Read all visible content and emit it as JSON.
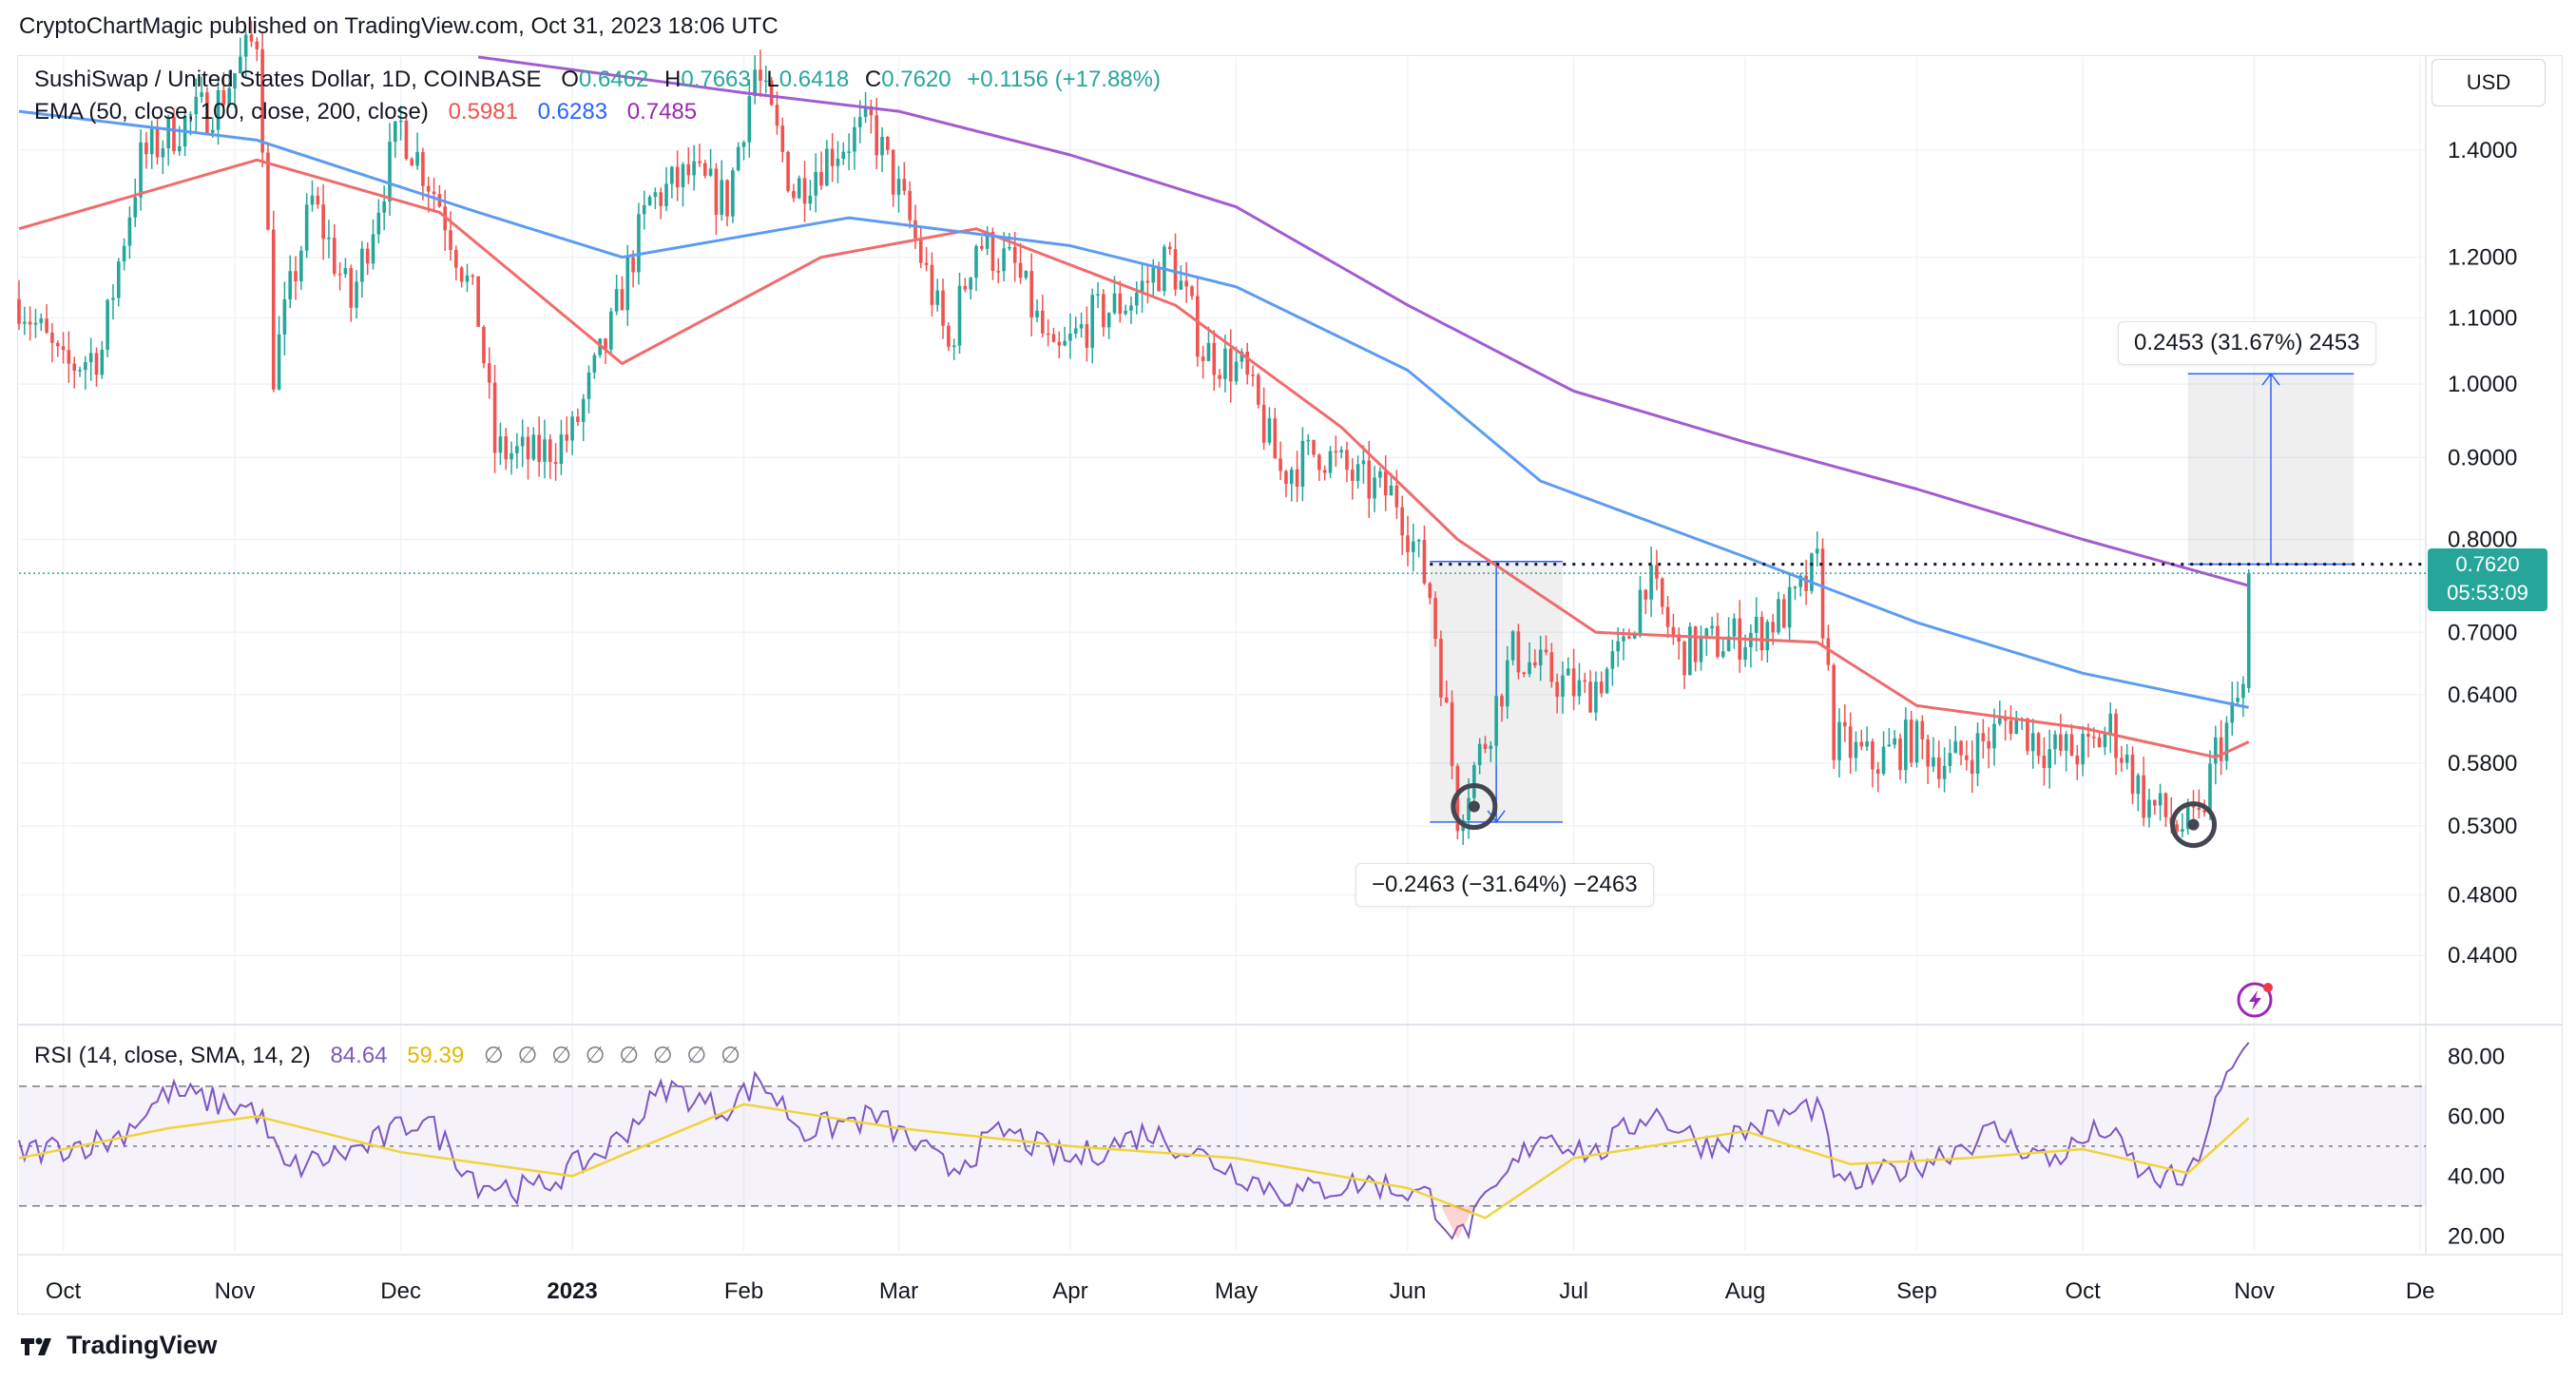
{
  "header": {
    "publisher": "CryptoChartMagic published on TradingView.com, Oct 31, 2023 18:06 UTC"
  },
  "legend": {
    "symbol": "SushiSwap / United States Dollar, 1D, COINBASE",
    "ohlc": [
      {
        "label": "O",
        "value": "0.6462"
      },
      {
        "label": "H",
        "value": "0.7663"
      },
      {
        "label": "L",
        "value": "0.6418"
      },
      {
        "label": "C",
        "value": "0.7620"
      }
    ],
    "change": "+0.1156 (+17.88%)",
    "ema_label": "EMA (50, close, 100, close, 200, close)",
    "ema_values": [
      "0.5981",
      "0.6283",
      "0.7485"
    ],
    "rsi_label": "RSI (14, close, SMA, 14, 2)",
    "rsi_values": [
      "84.64",
      "59.39"
    ],
    "rsi_placeholders": "∅ ∅ ∅ ∅ ∅ ∅ ∅ ∅"
  },
  "price_scale": {
    "currency": "USD",
    "ticks": [
      "1.4000",
      "1.2000",
      "1.1000",
      "1.0000",
      "0.9000",
      "0.8000",
      "0.7000",
      "0.6400",
      "0.5800",
      "0.5300",
      "0.4800",
      "0.4400"
    ],
    "last_price": "0.7620",
    "countdown": "05:53:09"
  },
  "rsi_scale": {
    "ticks": [
      "80.00",
      "60.00",
      "40.00",
      "20.00"
    ]
  },
  "time_axis": {
    "labels": [
      "Oct",
      "Nov",
      "Dec",
      "2023",
      "Feb",
      "Mar",
      "Apr",
      "May",
      "Jun",
      "Jul",
      "Aug",
      "Sep",
      "Oct",
      "Nov",
      "De"
    ]
  },
  "measurements": {
    "up": "0.2453 (31.67%) 2453",
    "down": "−0.2463 (−31.64%) −2463"
  },
  "footer": {
    "brand": "TradingView"
  },
  "colors": {
    "up": "#26a69a",
    "down": "#ef5350",
    "ema50": "#f06b6b",
    "ema100": "#5b9cf2",
    "ema200": "#a35bd0",
    "rsi": "#7e57c2",
    "rsi_sma": "#f0d43a"
  },
  "chart_data": {
    "type": "candlestick",
    "title": "SushiSwap / United States Dollar, 1D, COINBASE",
    "x_range": [
      "2022-09-23",
      "2023-12-02"
    ],
    "y_scale": "log",
    "ylim": [
      0.4,
      1.6
    ],
    "grid": true,
    "price_waypoints": [
      {
        "date": "2022-09-23",
        "close": 1.13
      },
      {
        "date": "2022-10-01",
        "close": 1.02
      },
      {
        "date": "2022-10-08",
        "close": 1.05
      },
      {
        "date": "2022-10-15",
        "close": 1.38
      },
      {
        "date": "2022-10-22",
        "close": 1.45
      },
      {
        "date": "2022-10-29",
        "close": 1.5
      },
      {
        "date": "2022-11-05",
        "close": 1.65
      },
      {
        "date": "2022-11-08",
        "close": 1.02
      },
      {
        "date": "2022-11-15",
        "close": 1.3
      },
      {
        "date": "2022-11-22",
        "close": 1.12
      },
      {
        "date": "2022-12-01",
        "close": 1.45
      },
      {
        "date": "2022-12-08",
        "close": 1.3
      },
      {
        "date": "2022-12-15",
        "close": 1.1
      },
      {
        "date": "2022-12-18",
        "close": 0.91
      },
      {
        "date": "2022-12-25",
        "close": 0.9
      },
      {
        "date": "2023-01-01",
        "close": 0.93
      },
      {
        "date": "2023-01-08",
        "close": 1.08
      },
      {
        "date": "2023-01-15",
        "close": 1.3
      },
      {
        "date": "2023-01-22",
        "close": 1.35
      },
      {
        "date": "2023-01-29",
        "close": 1.3
      },
      {
        "date": "2023-02-03",
        "close": 1.57
      },
      {
        "date": "2023-02-10",
        "close": 1.32
      },
      {
        "date": "2023-02-17",
        "close": 1.4
      },
      {
        "date": "2023-02-24",
        "close": 1.45
      },
      {
        "date": "2023-03-03",
        "close": 1.26
      },
      {
        "date": "2023-03-10",
        "close": 1.05
      },
      {
        "date": "2023-03-15",
        "close": 1.23
      },
      {
        "date": "2023-03-22",
        "close": 1.18
      },
      {
        "date": "2023-03-29",
        "close": 1.03
      },
      {
        "date": "2023-04-05",
        "close": 1.1
      },
      {
        "date": "2023-04-12",
        "close": 1.13
      },
      {
        "date": "2023-04-19",
        "close": 1.2
      },
      {
        "date": "2023-04-25",
        "close": 1.05
      },
      {
        "date": "2023-05-02",
        "close": 1.02
      },
      {
        "date": "2023-05-09",
        "close": 0.88
      },
      {
        "date": "2023-05-16",
        "close": 0.91
      },
      {
        "date": "2023-05-23",
        "close": 0.87
      },
      {
        "date": "2023-05-30",
        "close": 0.85
      },
      {
        "date": "2023-06-05",
        "close": 0.74
      },
      {
        "date": "2023-06-10",
        "close": 0.54
      },
      {
        "date": "2023-06-15",
        "close": 0.6
      },
      {
        "date": "2023-06-20",
        "close": 0.68
      },
      {
        "date": "2023-06-26",
        "close": 0.66
      },
      {
        "date": "2023-07-03",
        "close": 0.64
      },
      {
        "date": "2023-07-10",
        "close": 0.68
      },
      {
        "date": "2023-07-14",
        "close": 0.76
      },
      {
        "date": "2023-07-20",
        "close": 0.68
      },
      {
        "date": "2023-07-27",
        "close": 0.69
      },
      {
        "date": "2023-08-03",
        "close": 0.7
      },
      {
        "date": "2023-08-10",
        "close": 0.73
      },
      {
        "date": "2023-08-14",
        "close": 0.77
      },
      {
        "date": "2023-08-17",
        "close": 0.6
      },
      {
        "date": "2023-08-24",
        "close": 0.58
      },
      {
        "date": "2023-08-31",
        "close": 0.6
      },
      {
        "date": "2023-09-07",
        "close": 0.58
      },
      {
        "date": "2023-09-14",
        "close": 0.6
      },
      {
        "date": "2023-09-18",
        "close": 0.62
      },
      {
        "date": "2023-09-25",
        "close": 0.59
      },
      {
        "date": "2023-10-02",
        "close": 0.59
      },
      {
        "date": "2023-10-06",
        "close": 0.61
      },
      {
        "date": "2023-10-12",
        "close": 0.55
      },
      {
        "date": "2023-10-18",
        "close": 0.53
      },
      {
        "date": "2023-10-22",
        "close": 0.53
      },
      {
        "date": "2023-10-25",
        "close": 0.59
      },
      {
        "date": "2023-10-28",
        "close": 0.62
      },
      {
        "date": "2023-10-30",
        "close": 0.646
      },
      {
        "date": "2023-10-31",
        "close": 0.762
      }
    ],
    "ema_series": [
      {
        "name": "EMA 50",
        "last": 0.5981,
        "points": [
          {
            "date": "2022-09-23",
            "value": 1.25
          },
          {
            "date": "2022-11-05",
            "value": 1.38
          },
          {
            "date": "2022-12-08",
            "value": 1.28
          },
          {
            "date": "2023-01-10",
            "value": 1.03
          },
          {
            "date": "2023-02-15",
            "value": 1.2
          },
          {
            "date": "2023-03-15",
            "value": 1.25
          },
          {
            "date": "2023-04-20",
            "value": 1.12
          },
          {
            "date": "2023-05-20",
            "value": 0.94
          },
          {
            "date": "2023-06-10",
            "value": 0.8
          },
          {
            "date": "2023-07-05",
            "value": 0.7
          },
          {
            "date": "2023-08-14",
            "value": 0.69
          },
          {
            "date": "2023-09-01",
            "value": 0.63
          },
          {
            "date": "2023-10-01",
            "value": 0.61
          },
          {
            "date": "2023-10-25",
            "value": 0.585
          },
          {
            "date": "2023-10-31",
            "value": 0.5981
          }
        ]
      },
      {
        "name": "EMA 100",
        "last": 0.6283,
        "points": [
          {
            "date": "2022-09-23",
            "value": 1.48
          },
          {
            "date": "2022-11-05",
            "value": 1.42
          },
          {
            "date": "2022-12-15",
            "value": 1.28
          },
          {
            "date": "2023-01-10",
            "value": 1.2
          },
          {
            "date": "2023-02-20",
            "value": 1.27
          },
          {
            "date": "2023-04-01",
            "value": 1.22
          },
          {
            "date": "2023-05-01",
            "value": 1.15
          },
          {
            "date": "2023-06-01",
            "value": 1.02
          },
          {
            "date": "2023-06-25",
            "value": 0.87
          },
          {
            "date": "2023-08-01",
            "value": 0.78
          },
          {
            "date": "2023-09-01",
            "value": 0.71
          },
          {
            "date": "2023-10-01",
            "value": 0.66
          },
          {
            "date": "2023-10-31",
            "value": 0.6283
          }
        ]
      },
      {
        "name": "EMA 200",
        "last": 0.7485,
        "points": [
          {
            "date": "2022-12-15",
            "value": 1.6
          },
          {
            "date": "2023-02-01",
            "value": 1.52
          },
          {
            "date": "2023-03-01",
            "value": 1.48
          },
          {
            "date": "2023-04-01",
            "value": 1.39
          },
          {
            "date": "2023-05-01",
            "value": 1.29
          },
          {
            "date": "2023-06-01",
            "value": 1.12
          },
          {
            "date": "2023-07-01",
            "value": 0.99
          },
          {
            "date": "2023-08-01",
            "value": 0.92
          },
          {
            "date": "2023-09-01",
            "value": 0.86
          },
          {
            "date": "2023-10-01",
            "value": 0.8
          },
          {
            "date": "2023-10-31",
            "value": 0.7485
          }
        ]
      }
    ],
    "horizontal_levels": [
      {
        "price": 0.772,
        "style": "dotted",
        "from": "2023-06-05"
      },
      {
        "price": 0.762,
        "style": "last-price"
      }
    ],
    "measure_boxes": [
      {
        "from": "2023-06-05",
        "to": "2023-06-29",
        "top": 0.775,
        "bottom": 0.533,
        "direction": "down"
      },
      {
        "from": "2023-10-20",
        "to": "2023-11-19",
        "top": 1.015,
        "bottom": 0.772,
        "direction": "up"
      }
    ],
    "circles": [
      {
        "date": "2023-06-13",
        "price": 0.545
      },
      {
        "date": "2023-10-21",
        "price": 0.531
      }
    ],
    "rsi": {
      "period": 14,
      "sma": 14,
      "last": 84.64,
      "sma_last": 59.39,
      "bands": [
        70,
        50,
        30
      ],
      "ylim": [
        15,
        90
      ],
      "points": [
        {
          "date": "2022-09-23",
          "value": 48
        },
        {
          "date": "2022-10-10",
          "value": 52
        },
        {
          "date": "2022-10-20",
          "value": 68
        },
        {
          "date": "2022-11-05",
          "value": 62
        },
        {
          "date": "2022-11-10",
          "value": 42
        },
        {
          "date": "2022-11-25",
          "value": 50
        },
        {
          "date": "2022-12-05",
          "value": 60
        },
        {
          "date": "2022-12-15",
          "value": 38
        },
        {
          "date": "2022-12-25",
          "value": 35
        },
        {
          "date": "2023-01-08",
          "value": 50
        },
        {
          "date": "2023-01-18",
          "value": 70
        },
        {
          "date": "2023-01-28",
          "value": 62
        },
        {
          "date": "2023-02-04",
          "value": 72
        },
        {
          "date": "2023-02-12",
          "value": 55
        },
        {
          "date": "2023-02-25",
          "value": 60
        },
        {
          "date": "2023-03-10",
          "value": 42
        },
        {
          "date": "2023-03-20",
          "value": 55
        },
        {
          "date": "2023-04-01",
          "value": 45
        },
        {
          "date": "2023-04-15",
          "value": 55
        },
        {
          "date": "2023-04-28",
          "value": 44
        },
        {
          "date": "2023-05-10",
          "value": 34
        },
        {
          "date": "2023-05-25",
          "value": 38
        },
        {
          "date": "2023-06-05",
          "value": 33
        },
        {
          "date": "2023-06-10",
          "value": 19
        },
        {
          "date": "2023-06-15",
          "value": 30
        },
        {
          "date": "2023-06-25",
          "value": 55
        },
        {
          "date": "2023-07-05",
          "value": 47
        },
        {
          "date": "2023-07-15",
          "value": 62
        },
        {
          "date": "2023-07-25",
          "value": 50
        },
        {
          "date": "2023-08-05",
          "value": 58
        },
        {
          "date": "2023-08-14",
          "value": 64
        },
        {
          "date": "2023-08-18",
          "value": 36
        },
        {
          "date": "2023-09-01",
          "value": 44
        },
        {
          "date": "2023-09-15",
          "value": 55
        },
        {
          "date": "2023-09-25",
          "value": 45
        },
        {
          "date": "2023-10-05",
          "value": 56
        },
        {
          "date": "2023-10-12",
          "value": 40
        },
        {
          "date": "2023-10-20",
          "value": 38
        },
        {
          "date": "2023-10-26",
          "value": 68
        },
        {
          "date": "2023-10-31",
          "value": 84.64
        }
      ],
      "sma_points": [
        {
          "date": "2022-09-23",
          "value": 46
        },
        {
          "date": "2022-10-20",
          "value": 56
        },
        {
          "date": "2022-11-05",
          "value": 60
        },
        {
          "date": "2022-12-01",
          "value": 48
        },
        {
          "date": "2023-01-01",
          "value": 40
        },
        {
          "date": "2023-02-01",
          "value": 64
        },
        {
          "date": "2023-03-01",
          "value": 56
        },
        {
          "date": "2023-04-01",
          "value": 50
        },
        {
          "date": "2023-05-01",
          "value": 46
        },
        {
          "date": "2023-06-01",
          "value": 36
        },
        {
          "date": "2023-06-15",
          "value": 26
        },
        {
          "date": "2023-07-01",
          "value": 46
        },
        {
          "date": "2023-08-01",
          "value": 55
        },
        {
          "date": "2023-08-20",
          "value": 44
        },
        {
          "date": "2023-09-10",
          "value": 46
        },
        {
          "date": "2023-10-01",
          "value": 49
        },
        {
          "date": "2023-10-20",
          "value": 41
        },
        {
          "date": "2023-10-31",
          "value": 59.39
        }
      ]
    }
  }
}
